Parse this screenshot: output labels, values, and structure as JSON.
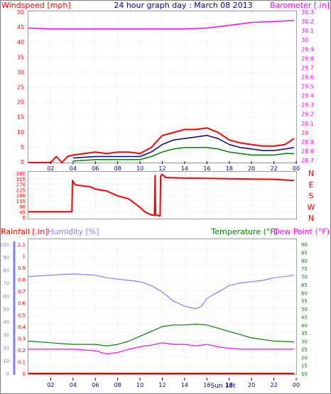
{
  "chart_data": [
    {
      "type": "line",
      "panel": "wind-barometer",
      "title": "24 hour graph day : March 08 2013",
      "ylabel_left": "Windspeed [mph]",
      "ylabel_right": "Barometer [.in]",
      "ylim_left": [
        0,
        50
      ],
      "ylim_right": [
        28.7,
        30.3
      ],
      "x_ticks": [
        "02",
        "04",
        "06",
        "08",
        "10",
        "12",
        "14",
        "16",
        "18",
        "20",
        "22",
        "00"
      ],
      "y_ticks_left": [
        "0",
        "5",
        "10",
        "15",
        "20",
        "25",
        "30",
        "35",
        "40",
        "45",
        "50"
      ],
      "y_ticks_right": [
        "28.7",
        "28.8",
        "28.9",
        "29",
        "29.1",
        "29.2",
        "29.3",
        "29.4",
        "29.5",
        "29.6",
        "29.7",
        "29.8",
        "29.9",
        "30",
        "30.1",
        "30.2",
        "30.3"
      ],
      "series": [
        {
          "color": "#ff0000",
          "axis": "left",
          "x": [
            0,
            2,
            2.5,
            3,
            3.5,
            4,
            5,
            6,
            7,
            8,
            9,
            10,
            11,
            12,
            13,
            14,
            15,
            16,
            17,
            18,
            19,
            20,
            21,
            22,
            23,
            23.8
          ],
          "values": [
            0,
            0,
            2,
            0,
            2,
            2.5,
            3,
            3.5,
            3,
            3.5,
            3.5,
            3,
            5,
            9,
            10,
            11,
            11,
            11.5,
            10,
            7.5,
            6.5,
            6,
            5.5,
            5.5,
            6,
            8
          ]
        },
        {
          "color": "#000080",
          "axis": "left",
          "x": [
            4,
            6,
            8,
            10,
            11,
            12,
            13,
            14,
            15,
            16,
            17,
            18,
            19,
            20,
            21,
            22,
            23,
            23.8
          ],
          "values": [
            1.5,
            2,
            2,
            2,
            3.5,
            6,
            7.5,
            8,
            8.5,
            9,
            8,
            6,
            5,
            4.5,
            4,
            4,
            4.5,
            5
          ]
        },
        {
          "color": "#008000",
          "axis": "left",
          "x": [
            4,
            6,
            8,
            10,
            11,
            12,
            13,
            14,
            15,
            16,
            17,
            18,
            19,
            20,
            21,
            22,
            23,
            23.8
          ],
          "values": [
            0.5,
            1,
            1,
            1,
            2,
            3.5,
            4.5,
            5,
            5,
            5,
            4.5,
            3.5,
            3,
            2.5,
            2.5,
            2.5,
            3,
            3
          ]
        },
        {
          "color": "#ff00ff",
          "axis": "right",
          "x": [
            0,
            2,
            4,
            6,
            8,
            10,
            12,
            14,
            16,
            18,
            20,
            22,
            23.8
          ],
          "values": [
            30.13,
            30.12,
            30.12,
            30.12,
            30.12,
            30.12,
            30.12,
            30.12,
            30.13,
            30.16,
            30.19,
            30.2,
            30.21
          ]
        }
      ]
    },
    {
      "type": "line",
      "panel": "wind-direction",
      "ylim": [
        0,
        360
      ],
      "y_ticks_left": [
        "0",
        "45",
        "90",
        "135",
        "180",
        "225",
        "270",
        "315",
        "360"
      ],
      "y_ticks_right": [
        "N",
        "W",
        "S",
        "E",
        "N"
      ],
      "x_ticks": [
        "02",
        "04",
        "06",
        "08",
        "10",
        "12",
        "14",
        "16",
        "18",
        "20",
        "22",
        "00"
      ],
      "series": [
        {
          "color": "#ff0000",
          "x": [
            0,
            3.9,
            3.95,
            4.2,
            5,
            5.5,
            6,
            7,
            8,
            9,
            10,
            10.5,
            11,
            11.3,
            11.35,
            11.4,
            11.8,
            11.85,
            11.9,
            12,
            12.3,
            14,
            16,
            18,
            20,
            22,
            23.8
          ],
          "values": [
            45,
            45,
            300,
            265,
            255,
            250,
            230,
            215,
            175,
            150,
            80,
            40,
            20,
            15,
            340,
            20,
            10,
            330,
            345,
            350,
            325,
            320,
            318,
            315,
            312,
            310,
            300
          ]
        }
      ]
    },
    {
      "type": "line",
      "panel": "rain-humidity-temperature",
      "ylabel_left_1": "Rainfall [.in]",
      "ylabel_left_2": "Humidity [%]",
      "ylabel_right_1": "Temperature (°F)",
      "ylabel_right_2": "Dew Point (°F)",
      "ylim_rain": [
        0,
        1.1
      ],
      "ylim_humidity": [
        0,
        100
      ],
      "ylim_temperature": [
        10,
        90
      ],
      "y_ticks_rain": [
        "0",
        "0.1",
        "0.2",
        "0.3",
        "0.4",
        "0.5",
        "0.6",
        "0.7",
        "0.8",
        "0.9",
        "1",
        "1.1"
      ],
      "y_ticks_humidity": [
        "0",
        "10",
        "20",
        "30",
        "40",
        "50",
        "60",
        "70",
        "80",
        "90",
        "100"
      ],
      "y_ticks_temperature": [
        "10",
        "15",
        "20",
        "25",
        "30",
        "35",
        "40",
        "45",
        "50",
        "55",
        "60",
        "65",
        "70",
        "75",
        "80",
        "85",
        "90"
      ],
      "x_ticks": [
        "02",
        "04",
        "06",
        "08",
        "10",
        "12",
        "14",
        "16",
        "18",
        "20",
        "22",
        "00"
      ],
      "annotations": [
        "Sun 18t"
      ],
      "series": [
        {
          "color": "#8080ff",
          "axis": "humidity",
          "x": [
            0,
            2,
            4,
            6,
            7,
            8,
            9,
            10,
            11,
            12,
            13,
            14,
            15,
            15.5,
            16,
            17,
            18,
            19,
            20,
            21,
            22,
            23.8
          ],
          "values": [
            75,
            76,
            77,
            76,
            74,
            73,
            72,
            71,
            68,
            63,
            56,
            52,
            50,
            52,
            58,
            63,
            68,
            70,
            71,
            72,
            74,
            76
          ]
        },
        {
          "color": "#008000",
          "axis": "temperature",
          "x": [
            0,
            2,
            4,
            6,
            7,
            8,
            9,
            10,
            11,
            12,
            13,
            14,
            15,
            16,
            17,
            18,
            19,
            20,
            21,
            22,
            23.8
          ],
          "values": [
            30,
            29,
            28,
            28,
            27,
            28,
            30,
            33,
            36,
            39,
            40,
            40,
            40.5,
            40,
            38,
            36,
            34,
            32,
            31,
            30,
            29.5
          ]
        },
        {
          "color": "#ff00ff",
          "axis": "temperature",
          "x": [
            0,
            2,
            4,
            6,
            7,
            8,
            9,
            10,
            11,
            12,
            13,
            14,
            15,
            16,
            17,
            18,
            19,
            20,
            21,
            22,
            23.8
          ],
          "values": [
            25,
            25,
            25,
            24,
            22,
            23,
            25,
            26.5,
            27.5,
            29,
            28,
            28,
            27,
            28,
            26.5,
            25.5,
            25,
            25,
            25,
            25,
            25
          ]
        },
        {
          "color": "#ff0000",
          "axis": "rain",
          "x": [
            0,
            23.8
          ],
          "values": [
            0,
            0
          ]
        }
      ]
    }
  ]
}
